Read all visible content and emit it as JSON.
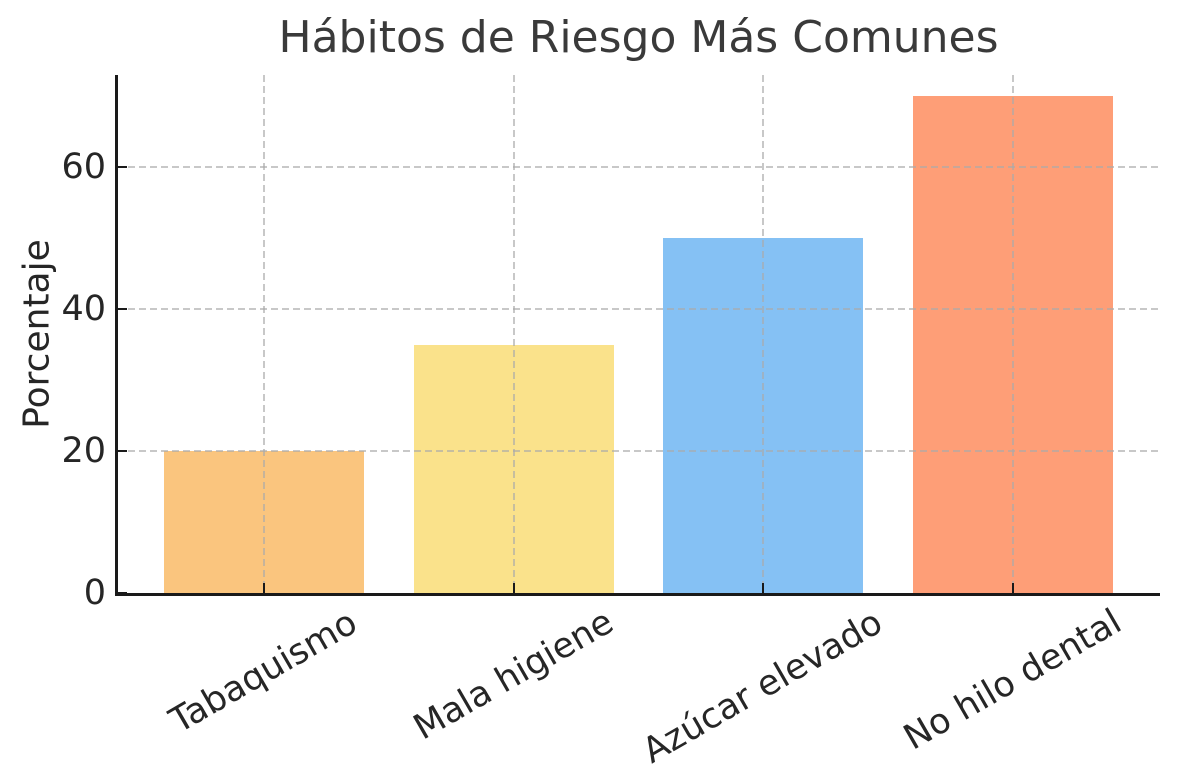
{
  "chart_data": {
    "type": "bar",
    "title": "Hábitos de Riesgo Más Comunes",
    "xlabel": "",
    "ylabel": "Porcentaje",
    "categories": [
      "Tabaquismo",
      "Mala higiene",
      "Azúcar elevado",
      "No hilo dental"
    ],
    "values": [
      20,
      35,
      50,
      70
    ],
    "bar_colors": [
      "#FAC57E",
      "#FAE28B",
      "#85C1F4",
      "#FE9E77"
    ],
    "yticks": [
      0,
      20,
      40,
      60
    ],
    "ytick_labels": [
      "0",
      "20",
      "40",
      "60"
    ],
    "ylim": [
      0,
      73
    ],
    "xlim": [
      -0.59,
      3.59
    ],
    "bar_width": 0.8,
    "x_tick_rotation_deg": -30,
    "grid": "dashed",
    "grid_on": true,
    "legend": "none",
    "colors": {
      "grid": "#cccccc",
      "axis": "#1a1a1a",
      "tick_text": "#262626",
      "title_text": "#3a3a3a",
      "background": "#ffffff"
    }
  }
}
